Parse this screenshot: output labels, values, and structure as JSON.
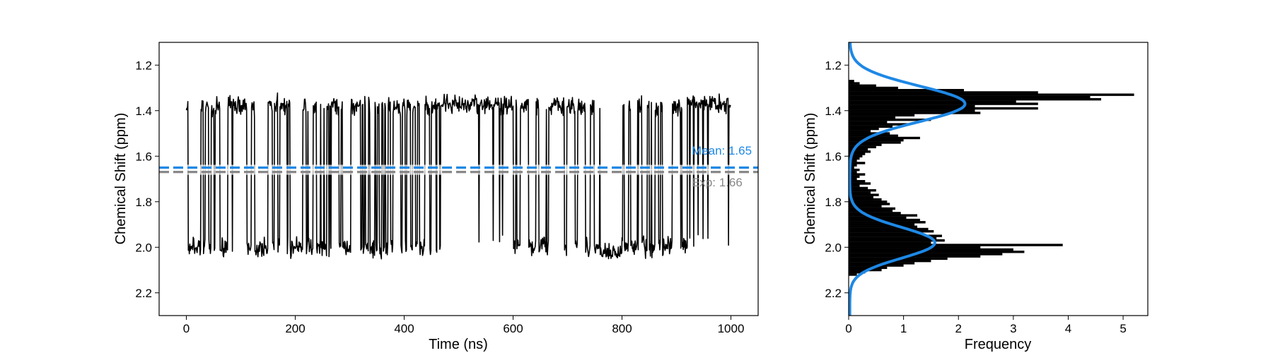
{
  "chart_data": [
    {
      "type": "line",
      "title": "",
      "xlabel": "Time (ns)",
      "ylabel": "Chemical Shift (ppm)",
      "xlim": [
        -50,
        1050
      ],
      "ylim": [
        2.3,
        1.1
      ],
      "y_inverted": true,
      "xticks": [
        0,
        200,
        400,
        600,
        800,
        1000
      ],
      "yticks": [
        1.2,
        1.4,
        1.6,
        1.8,
        2.0,
        2.2
      ],
      "grid": false,
      "series": [
        {
          "color": "#000000",
          "segments": [
            {
              "x": [
                0,
                460
              ],
              "state": "mixed",
              "low_state_mean": 1.38,
              "high_state_mean": 2.0,
              "fraction_low": 0.5
            },
            {
              "x": [
                460,
                600
              ],
              "state": "low",
              "mean": 1.37,
              "excursions": 6
            },
            {
              "x": [
                600,
                760
              ],
              "state": "mixed",
              "low_state_mean": 1.38,
              "high_state_mean": 2.0,
              "fraction_low": 0.55
            },
            {
              "x": [
                760,
                800
              ],
              "state": "high",
              "mean": 2.02
            },
            {
              "x": [
                800,
                920
              ],
              "state": "mixed",
              "low_state_mean": 1.38,
              "high_state_mean": 2.0,
              "fraction_low": 0.45
            },
            {
              "x": [
                920,
                1000
              ],
              "state": "low",
              "mean": 1.37,
              "excursions": 3
            }
          ],
          "y_range": [
            1.27,
            2.13
          ]
        }
      ],
      "hlines": [
        {
          "y": 1.65,
          "label": "Mean: 1.65",
          "color": "#1e88e5",
          "style": "dashed"
        },
        {
          "y": 1.66,
          "label": "Exp: 1.66",
          "color": "#888888",
          "style": "dashed"
        }
      ]
    },
    {
      "type": "bar",
      "orientation": "horizontal",
      "title": "",
      "xlabel": "Frequency",
      "ylabel": "Chemical Shift (ppm)",
      "xlim": [
        0,
        5.45
      ],
      "ylim": [
        2.3,
        1.1
      ],
      "y_inverted": true,
      "xticks": [
        0,
        1,
        2,
        3,
        4,
        5
      ],
      "yticks": [
        1.2,
        1.4,
        1.6,
        1.8,
        2.0,
        2.2
      ],
      "bin_width": 0.0087,
      "histogram": {
        "y": [
          1.27,
          1.28,
          1.29,
          1.3,
          1.31,
          1.32,
          1.33,
          1.34,
          1.35,
          1.36,
          1.37,
          1.38,
          1.39,
          1.4,
          1.41,
          1.42,
          1.43,
          1.44,
          1.45,
          1.46,
          1.47,
          1.48,
          1.49,
          1.5,
          1.51,
          1.52,
          1.53,
          1.54,
          1.55,
          1.56,
          1.57,
          1.58,
          1.59,
          1.6,
          1.61,
          1.62,
          1.63,
          1.64,
          1.65,
          1.66,
          1.67,
          1.68,
          1.69,
          1.7,
          1.71,
          1.72,
          1.73,
          1.74,
          1.75,
          1.76,
          1.77,
          1.78,
          1.79,
          1.8,
          1.81,
          1.82,
          1.83,
          1.84,
          1.85,
          1.86,
          1.87,
          1.88,
          1.89,
          1.9,
          1.91,
          1.92,
          1.93,
          1.94,
          1.95,
          1.96,
          1.97,
          1.98,
          1.99,
          2.0,
          2.01,
          2.02,
          2.03,
          2.04,
          2.05,
          2.06,
          2.07,
          2.08,
          2.09,
          2.1,
          2.11,
          2.12
        ],
        "freq": [
          0.1,
          0.2,
          0.5,
          0.9,
          2.1,
          3.45,
          5.2,
          4.4,
          4.6,
          3.05,
          3.45,
          2.3,
          3.45,
          2.3,
          2.4,
          1.2,
          0.85,
          1.5,
          0.7,
          1.1,
          0.8,
          0.55,
          0.4,
          0.75,
          0.9,
          1.3,
          1.0,
          0.95,
          0.6,
          0.5,
          0.35,
          0.4,
          0.3,
          0.25,
          0.2,
          0.15,
          0.3,
          0.15,
          0.1,
          0.2,
          0.15,
          0.3,
          0.2,
          0.15,
          0.3,
          0.4,
          0.2,
          0.35,
          0.5,
          0.4,
          0.55,
          0.45,
          0.6,
          0.7,
          0.75,
          0.6,
          0.85,
          0.8,
          0.95,
          1.25,
          1.05,
          1.3,
          1.4,
          1.2,
          1.25,
          1.45,
          1.55,
          1.35,
          1.7,
          1.6,
          1.75,
          1.5,
          3.9,
          2.4,
          3.0,
          3.2,
          2.8,
          2.4,
          1.8,
          1.5,
          1.2,
          1.0,
          0.7,
          0.6,
          0.3,
          0.15
        ]
      },
      "fit_curve": {
        "type": "bimodal-gaussian",
        "color": "#1e88e5",
        "components": [
          {
            "mu": 1.37,
            "sigma": 0.078,
            "amp": 2.1
          },
          {
            "mu": 1.98,
            "sigma": 0.068,
            "amp": 1.55
          }
        ]
      }
    }
  ]
}
